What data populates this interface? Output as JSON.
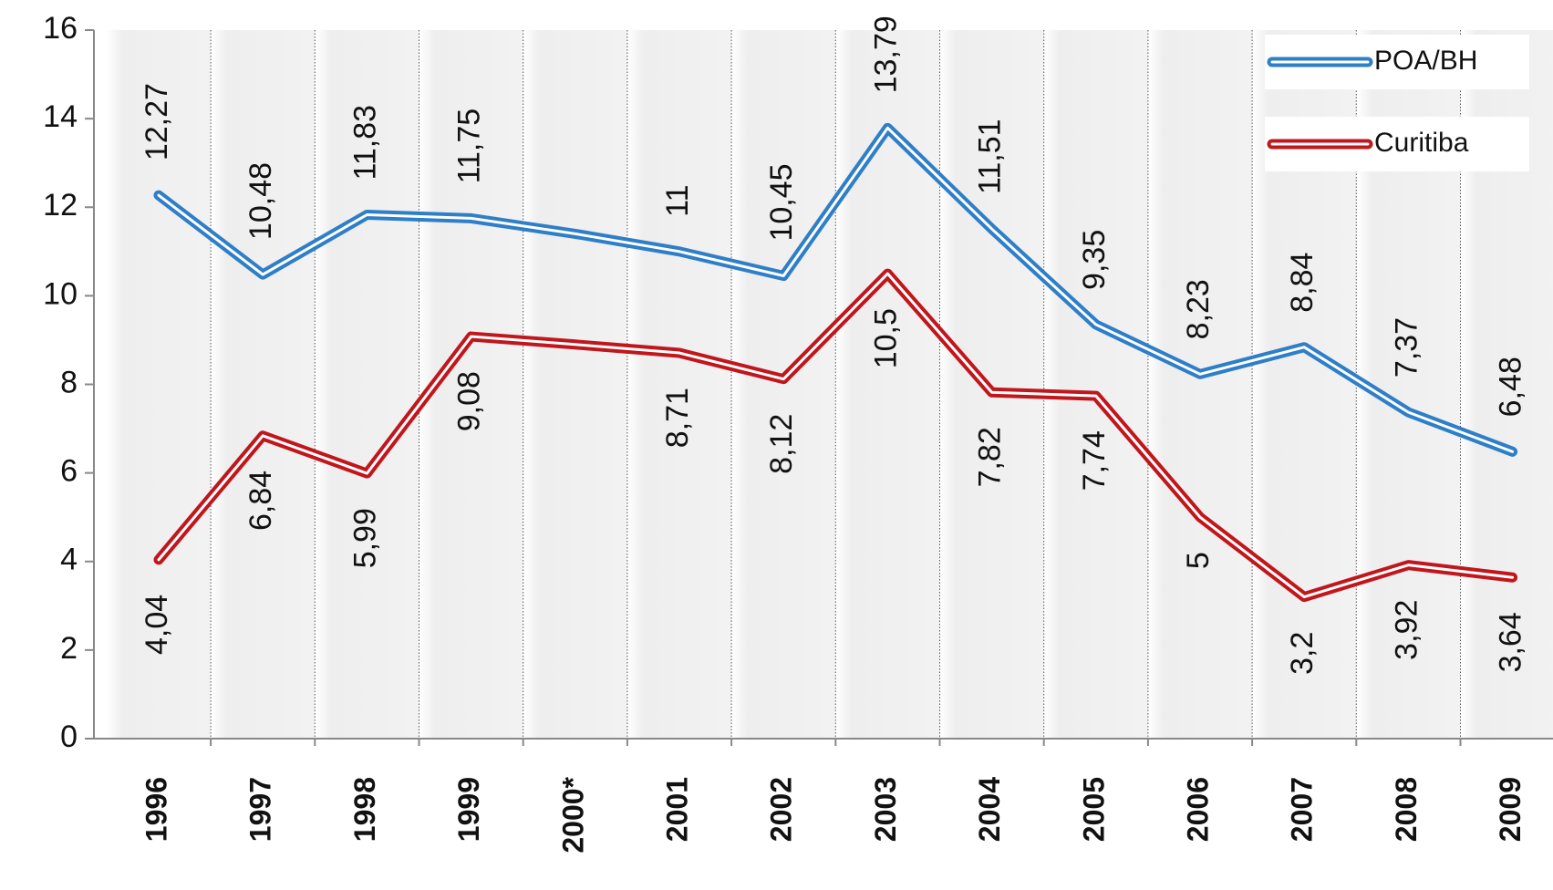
{
  "chart_data": {
    "type": "line",
    "categories": [
      "1996",
      "1997",
      "1998",
      "1999",
      "2000*",
      "2001",
      "2002",
      "2003",
      "2004",
      "2005",
      "2006",
      "2007",
      "2008",
      "2009"
    ],
    "series": [
      {
        "name": "POA/BH",
        "color": "#2e7ec8",
        "values": [
          12.27,
          10.48,
          11.83,
          11.75,
          11.4,
          11,
          10.45,
          13.79,
          11.51,
          9.35,
          8.23,
          8.84,
          7.37,
          6.48
        ],
        "value_labels": [
          "12,27",
          "10,48",
          "11,83",
          "11,75",
          null,
          "11",
          "10,45",
          "13,79",
          "11,51",
          "9,35",
          "8,23",
          "8,84",
          "7,37",
          "6,48"
        ]
      },
      {
        "name": "Curitiba",
        "color": "#c0161c",
        "values": [
          4.04,
          6.84,
          5.99,
          9.08,
          8.9,
          8.71,
          8.12,
          10.5,
          7.82,
          7.74,
          5,
          3.2,
          3.92,
          3.64
        ],
        "value_labels": [
          "4,04",
          "6,84",
          "5,99",
          "9,08",
          null,
          "8,71",
          "8,12",
          "10,5",
          "7,82",
          "7,74",
          "5",
          "3,2",
          "3,92",
          "3,64"
        ]
      }
    ],
    "ylim": [
      0,
      16
    ],
    "yticks": [
      0,
      2,
      4,
      6,
      8,
      10,
      12,
      14,
      16
    ],
    "legend": "top-right"
  }
}
